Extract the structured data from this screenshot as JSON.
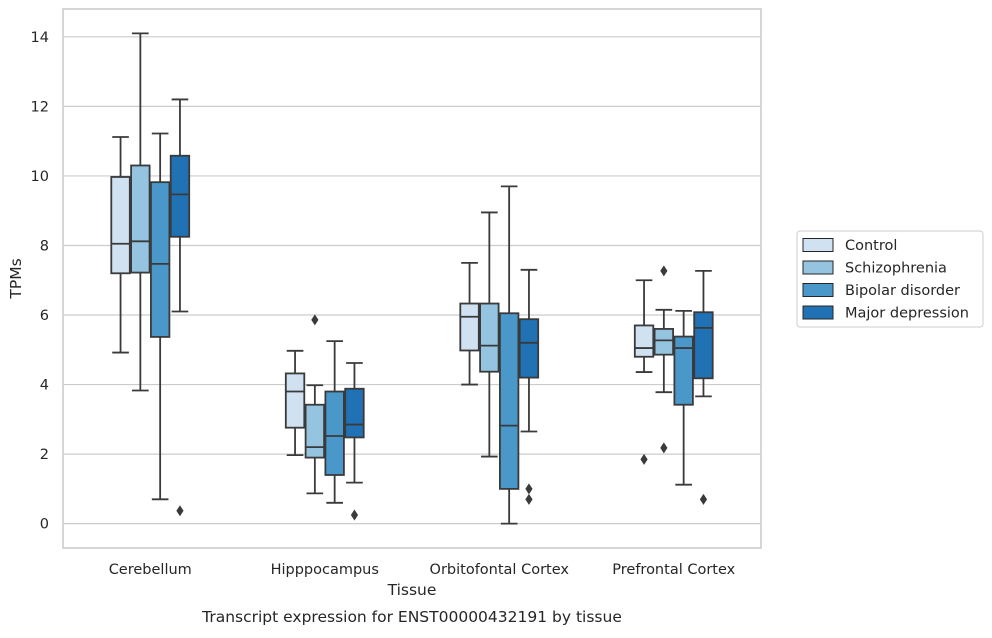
{
  "caption": "Transcript expression for ENST00000432191 by tissue",
  "chart_data": {
    "type": "box",
    "xlabel": "Tissue",
    "ylabel": "TPMs",
    "ylim": [
      -0.7,
      14.8
    ],
    "yticks": [
      0,
      2,
      4,
      6,
      8,
      10,
      12,
      14
    ],
    "grid": true,
    "legend_position": "right",
    "categories": [
      "Cerebellum",
      "Hipppocampus",
      "Orbitofontal Cortex",
      "Prefrontal Cortex"
    ],
    "series": [
      {
        "name": "Control",
        "color": "#d0e1f2",
        "boxes": [
          {
            "whisker_low": 4.92,
            "q1": 7.2,
            "median": 8.05,
            "q3": 9.97,
            "whisker_high": 11.12,
            "outliers": []
          },
          {
            "whisker_low": 1.97,
            "q1": 2.76,
            "median": 3.8,
            "q3": 4.32,
            "whisker_high": 4.97,
            "outliers": []
          },
          {
            "whisker_low": 4.0,
            "q1": 4.98,
            "median": 5.95,
            "q3": 6.33,
            "whisker_high": 7.5,
            "outliers": []
          },
          {
            "whisker_low": 4.36,
            "q1": 4.8,
            "median": 5.05,
            "q3": 5.7,
            "whisker_high": 7.0,
            "outliers": [
              1.85
            ]
          }
        ]
      },
      {
        "name": "Schizophrenia",
        "color": "#94c4df",
        "boxes": [
          {
            "whisker_low": 3.83,
            "q1": 7.22,
            "median": 8.12,
            "q3": 10.3,
            "whisker_high": 14.1,
            "outliers": []
          },
          {
            "whisker_low": 0.87,
            "q1": 1.9,
            "median": 2.2,
            "q3": 3.42,
            "whisker_high": 3.98,
            "outliers": [
              5.86
            ]
          },
          {
            "whisker_low": 1.93,
            "q1": 4.37,
            "median": 5.12,
            "q3": 6.33,
            "whisker_high": 8.95,
            "outliers": []
          },
          {
            "whisker_low": 3.78,
            "q1": 4.86,
            "median": 5.27,
            "q3": 5.6,
            "whisker_high": 6.15,
            "outliers": [
              7.27,
              2.18
            ]
          }
        ]
      },
      {
        "name": "Bipolar disorder",
        "color": "#4a98c9",
        "boxes": [
          {
            "whisker_low": 0.7,
            "q1": 5.37,
            "median": 7.47,
            "q3": 9.82,
            "whisker_high": 11.22,
            "outliers": []
          },
          {
            "whisker_low": 0.6,
            "q1": 1.4,
            "median": 2.52,
            "q3": 3.8,
            "whisker_high": 5.25,
            "outliers": []
          },
          {
            "whisker_low": 0.0,
            "q1": 1.0,
            "median": 2.82,
            "q3": 6.05,
            "whisker_high": 9.7,
            "outliers": []
          },
          {
            "whisker_low": 1.12,
            "q1": 3.42,
            "median": 5.05,
            "q3": 5.38,
            "whisker_high": 6.12,
            "outliers": []
          }
        ]
      },
      {
        "name": "Major depression",
        "color": "#2171b5",
        "boxes": [
          {
            "whisker_low": 6.1,
            "q1": 8.25,
            "median": 9.47,
            "q3": 10.58,
            "whisker_high": 12.2,
            "outliers": [
              0.37
            ]
          },
          {
            "whisker_low": 1.18,
            "q1": 2.48,
            "median": 2.85,
            "q3": 3.88,
            "whisker_high": 4.62,
            "outliers": [
              0.25
            ]
          },
          {
            "whisker_low": 2.65,
            "q1": 4.2,
            "median": 5.2,
            "q3": 5.88,
            "whisker_high": 7.3,
            "outliers": [
              1.0,
              0.7
            ]
          },
          {
            "whisker_low": 3.66,
            "q1": 4.18,
            "median": 5.63,
            "q3": 6.08,
            "whisker_high": 7.27,
            "outliers": [
              0.7
            ]
          }
        ]
      }
    ]
  }
}
